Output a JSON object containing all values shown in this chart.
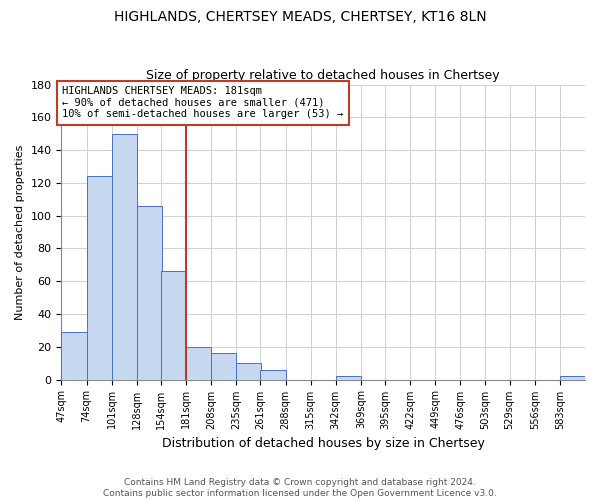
{
  "title": "HIGHLANDS, CHERTSEY MEADS, CHERTSEY, KT16 8LN",
  "subtitle": "Size of property relative to detached houses in Chertsey",
  "xlabel": "Distribution of detached houses by size in Chertsey",
  "ylabel": "Number of detached properties",
  "bar_edges": [
    47,
    74,
    101,
    128,
    154,
    181,
    208,
    235,
    261,
    288,
    315,
    342,
    369,
    395,
    422,
    449,
    476,
    503,
    529,
    556,
    583
  ],
  "bar_heights": [
    29,
    124,
    150,
    106,
    66,
    20,
    16,
    10,
    6,
    0,
    0,
    2,
    0,
    0,
    0,
    0,
    0,
    0,
    0,
    0,
    2
  ],
  "tick_labels": [
    "47sqm",
    "74sqm",
    "101sqm",
    "128sqm",
    "154sqm",
    "181sqm",
    "208sqm",
    "235sqm",
    "261sqm",
    "288sqm",
    "315sqm",
    "342sqm",
    "369sqm",
    "395sqm",
    "422sqm",
    "449sqm",
    "476sqm",
    "503sqm",
    "529sqm",
    "556sqm",
    "583sqm"
  ],
  "bar_color": "#c6d9f0",
  "bar_edge_color": "#4472c4",
  "vline_x": 181,
  "vline_color": "#c0392b",
  "ylim": [
    0,
    180
  ],
  "yticks": [
    0,
    20,
    40,
    60,
    80,
    100,
    120,
    140,
    160,
    180
  ],
  "annotation_line1": "HIGHLANDS CHERTSEY MEADS: 181sqm",
  "annotation_line2": "← 90% of detached houses are smaller (471)",
  "annotation_line3": "10% of semi-detached houses are larger (53) →",
  "annotation_box_color": "#ffffff",
  "annotation_box_edge": "#c0392b",
  "footer_line1": "Contains HM Land Registry data © Crown copyright and database right 2024.",
  "footer_line2": "Contains public sector information licensed under the Open Government Licence v3.0.",
  "bg_color": "#ffffff",
  "grid_color": "#d0d0d0",
  "title_fontsize": 10,
  "subtitle_fontsize": 9,
  "ylabel_fontsize": 8,
  "xlabel_fontsize": 9,
  "tick_fontsize": 7,
  "annotation_fontsize": 7.5,
  "footer_fontsize": 6.5
}
